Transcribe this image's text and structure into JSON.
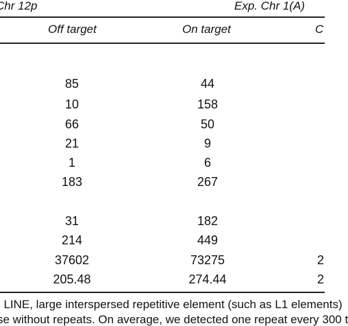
{
  "table": {
    "group_headers": {
      "left": "Chr 12p",
      "right": "Exp. Chr 1(A)"
    },
    "column_headers": {
      "off_target": "Off target",
      "on_target": "On target",
      "clipped": "C"
    },
    "group1": {
      "off_target": [
        "85",
        "10",
        "66",
        "21",
        "1",
        "183"
      ],
      "on_target": [
        "44",
        "158",
        "50",
        "9",
        "6",
        "267"
      ]
    },
    "group2": {
      "off_target": [
        "31",
        "214",
        "37602",
        "205.48"
      ],
      "on_target": [
        "182",
        "449",
        "73275",
        "274.44"
      ],
      "clipped_tail": [
        "2",
        "2"
      ]
    }
  },
  "footnote": {
    "line1": "; LINE, large interspersed repetitive element (such as L1 elements)",
    "line2": "se without repeats. On average, we detected one repeat every 300 t"
  }
}
